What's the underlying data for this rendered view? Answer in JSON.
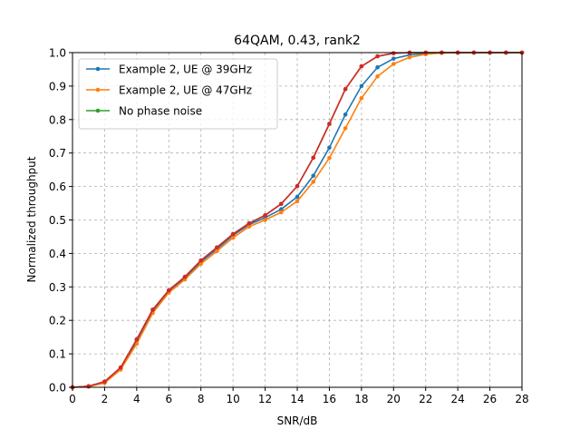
{
  "chart_data": {
    "type": "line",
    "title": "64QAM, 0.43, rank2",
    "xlabel": "SNR/dB",
    "ylabel": "Normalized throughput",
    "xlim": [
      0,
      28
    ],
    "ylim": [
      0,
      1.0
    ],
    "xticks": [
      0,
      2,
      4,
      6,
      8,
      10,
      12,
      14,
      16,
      18,
      20,
      22,
      24,
      26,
      28
    ],
    "yticks": [
      0.0,
      0.1,
      0.2,
      0.3,
      0.4,
      0.5,
      0.6,
      0.7,
      0.8,
      0.9,
      1.0
    ],
    "xtick_labels": [
      "0",
      "2",
      "4",
      "6",
      "8",
      "10",
      "12",
      "14",
      "16",
      "18",
      "20",
      "22",
      "24",
      "26",
      "28"
    ],
    "ytick_labels": [
      "0.0",
      "0.1",
      "0.2",
      "0.3",
      "0.4",
      "0.5",
      "0.6",
      "0.7",
      "0.8",
      "0.9",
      "1.0"
    ],
    "grid": true,
    "legend_position": "top-left",
    "x": [
      0,
      1,
      2,
      3,
      4,
      5,
      6,
      7,
      8,
      9,
      10,
      11,
      12,
      13,
      14,
      15,
      16,
      17,
      18,
      19,
      20,
      21,
      22,
      23,
      24,
      25,
      26,
      27,
      28
    ],
    "series": [
      {
        "name": "Example 2, UE @ 39GHz",
        "color": "#1f77b4",
        "in_legend": true,
        "values": [
          0.0,
          0.003,
          0.016,
          0.057,
          0.138,
          0.228,
          0.287,
          0.327,
          0.375,
          0.413,
          0.454,
          0.486,
          0.507,
          0.532,
          0.569,
          0.632,
          0.716,
          0.815,
          0.9,
          0.956,
          0.982,
          0.993,
          0.998,
          1.0,
          1.0,
          1.0,
          1.0,
          1.0,
          1.0
        ]
      },
      {
        "name": "Example 2, UE @ 47GHz",
        "color": "#ff7f0e",
        "in_legend": true,
        "values": [
          0.0,
          0.002,
          0.013,
          0.053,
          0.13,
          0.222,
          0.283,
          0.322,
          0.369,
          0.407,
          0.447,
          0.48,
          0.5,
          0.523,
          0.556,
          0.614,
          0.685,
          0.774,
          0.864,
          0.929,
          0.966,
          0.986,
          0.995,
          0.999,
          1.0,
          1.0,
          1.0,
          1.0,
          1.0
        ]
      },
      {
        "name": "No phase noise",
        "color": "#2ca02c",
        "in_legend": true,
        "values": [
          0.0,
          0.003,
          0.017,
          0.059,
          0.143,
          0.232,
          0.29,
          0.33,
          0.379,
          0.418,
          0.458,
          0.49,
          0.514,
          0.548,
          0.601,
          0.686,
          0.787,
          0.891,
          0.959,
          0.989,
          0.998,
          1.0,
          1.0,
          1.0,
          1.0,
          1.0,
          1.0,
          1.0,
          1.0
        ]
      },
      {
        "name": "",
        "color": "#d62728",
        "in_legend": false,
        "values": [
          0.0,
          0.003,
          0.017,
          0.059,
          0.143,
          0.232,
          0.29,
          0.33,
          0.379,
          0.418,
          0.458,
          0.49,
          0.514,
          0.548,
          0.601,
          0.686,
          0.787,
          0.891,
          0.959,
          0.989,
          0.998,
          1.0,
          1.0,
          1.0,
          1.0,
          1.0,
          1.0,
          1.0,
          1.0
        ]
      }
    ]
  }
}
